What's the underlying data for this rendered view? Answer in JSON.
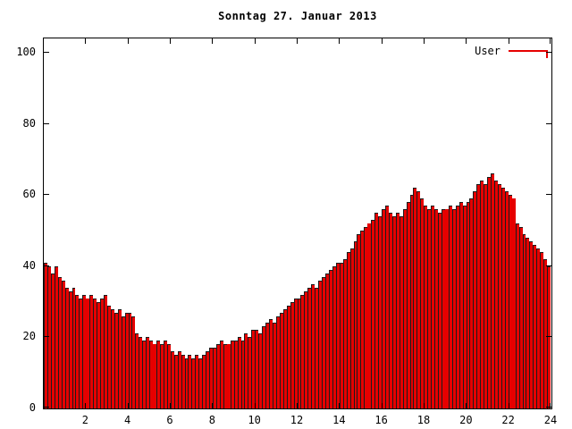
{
  "chart": {
    "title": "Sonntag 27. Januar 2013",
    "legend_label": "User"
  },
  "chart_data": {
    "type": "bar",
    "title": "Sonntag 27. Januar 2013",
    "series_name": "User",
    "x_unit": "hour of day",
    "x_start": 0,
    "x_interval_minutes": 10,
    "xlim": [
      0,
      24
    ],
    "ylim": [
      0,
      104
    ],
    "x_ticks": [
      2,
      4,
      6,
      8,
      10,
      12,
      14,
      16,
      18,
      20,
      22,
      24
    ],
    "y_ticks": [
      0,
      20,
      40,
      60,
      80,
      100
    ],
    "grid": false,
    "legend_position": "top-right",
    "values": [
      41,
      40,
      38,
      40,
      37,
      36,
      34,
      33,
      34,
      32,
      31,
      32,
      31,
      32,
      31,
      30,
      31,
      32,
      29,
      28,
      27,
      28,
      26,
      27,
      27,
      26,
      21,
      20,
      19,
      20,
      19,
      18,
      19,
      18,
      19,
      18,
      16,
      15,
      16,
      15,
      14,
      15,
      14,
      15,
      14,
      15,
      16,
      17,
      17,
      18,
      19,
      18,
      18,
      19,
      19,
      20,
      19,
      21,
      20,
      22,
      22,
      21,
      23,
      24,
      25,
      24,
      26,
      27,
      28,
      29,
      30,
      31,
      31,
      32,
      33,
      34,
      35,
      34,
      36,
      37,
      38,
      39,
      40,
      41,
      41,
      42,
      44,
      45,
      47,
      49,
      50,
      51,
      52,
      53,
      55,
      54,
      56,
      57,
      55,
      54,
      55,
      54,
      56,
      58,
      60,
      62,
      61,
      59,
      57,
      56,
      57,
      56,
      55,
      56,
      56,
      57,
      56,
      57,
      58,
      57,
      58,
      59,
      61,
      63,
      64,
      63,
      65,
      66,
      64,
      63,
      62,
      61,
      60,
      59,
      52,
      51,
      49,
      48,
      47,
      46,
      45,
      44,
      42,
      40
    ],
    "highlight_indices": [
      12,
      31,
      52,
      92,
      114,
      133
    ],
    "colors": {
      "bar_fill": "#e60000",
      "bar_outline": "#1c1c1c",
      "legend_line": "#e60000",
      "axis": "#000000",
      "text": "#000000",
      "background": "#ffffff"
    }
  }
}
